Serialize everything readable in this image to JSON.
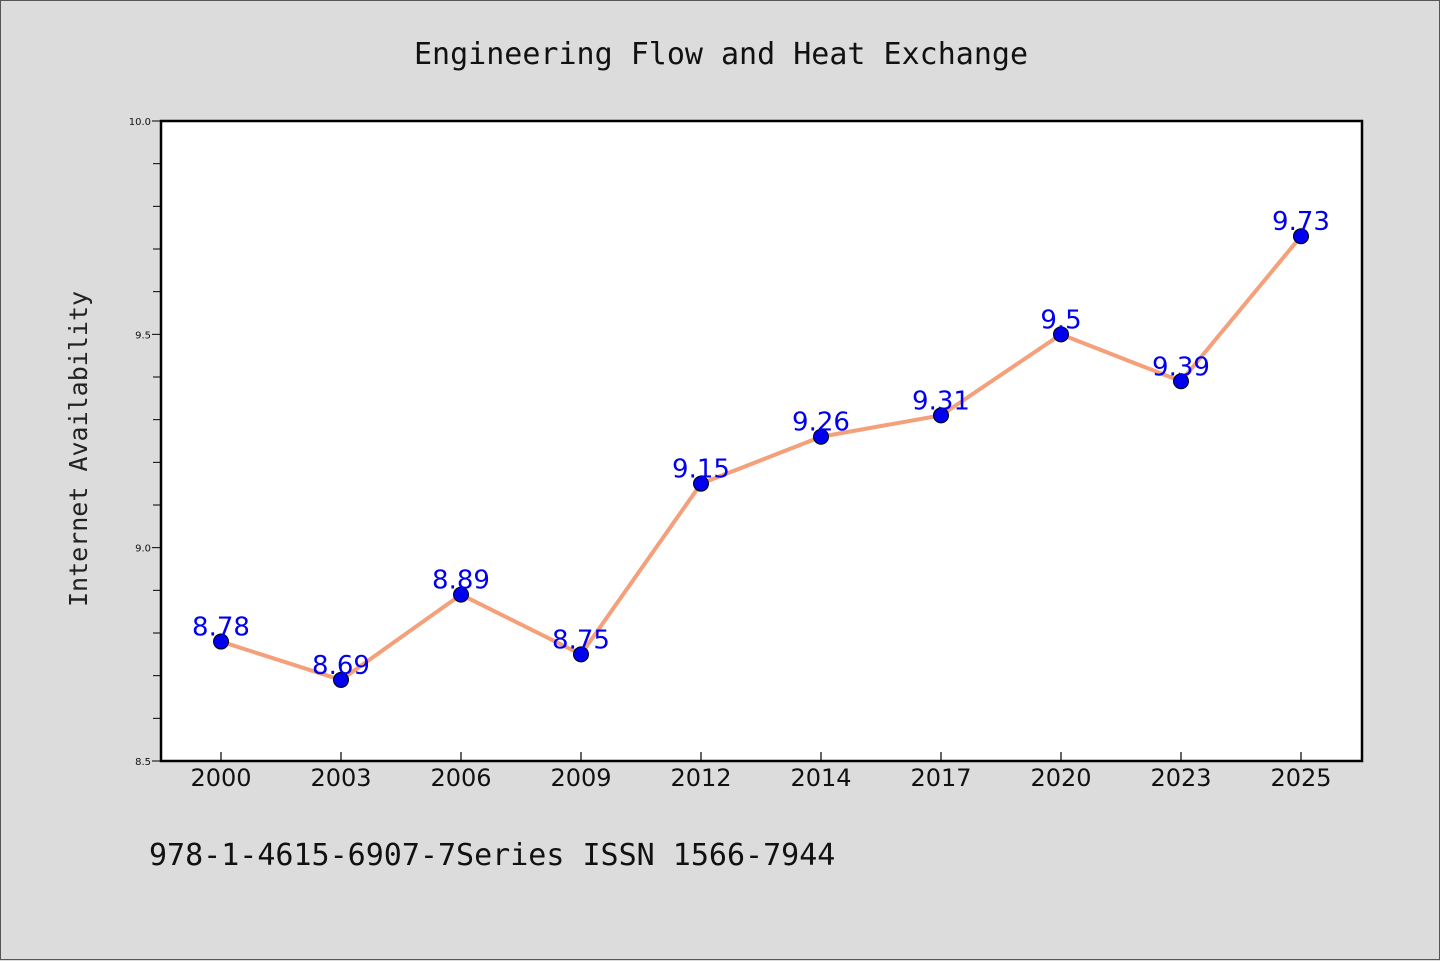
{
  "chart_data": {
    "type": "line",
    "title": "Engineering Flow and Heat Exchange",
    "xlabel": "",
    "ylabel": "Internet Availability",
    "categories": [
      "2000",
      "2003",
      "2006",
      "2009",
      "2012",
      "2014",
      "2017",
      "2020",
      "2023",
      "2025"
    ],
    "series": [
      {
        "values": [
          8.78,
          8.69,
          8.89,
          8.75,
          9.15,
          9.26,
          9.31,
          9.5,
          9.39,
          9.73
        ],
        "data_labels": [
          "8.78",
          "8.69",
          "8.89",
          "8.75",
          "9.15",
          "9.26",
          "9.31",
          "9.5",
          "9.39",
          "9.73"
        ],
        "line_color": "#f4a07a",
        "marker_color": "#0000ee",
        "label_color": "#0000ee"
      }
    ],
    "ylim": [
      8.5,
      10.0
    ],
    "yticks": [
      "8.5",
      "9.0",
      "9.5",
      "10.0"
    ],
    "grid": false,
    "background": "#ffffff",
    "figure_background": "#dcdcdc"
  },
  "footer": {
    "text": "978-1-4615-6907-7Series ISSN 1566-7944"
  }
}
